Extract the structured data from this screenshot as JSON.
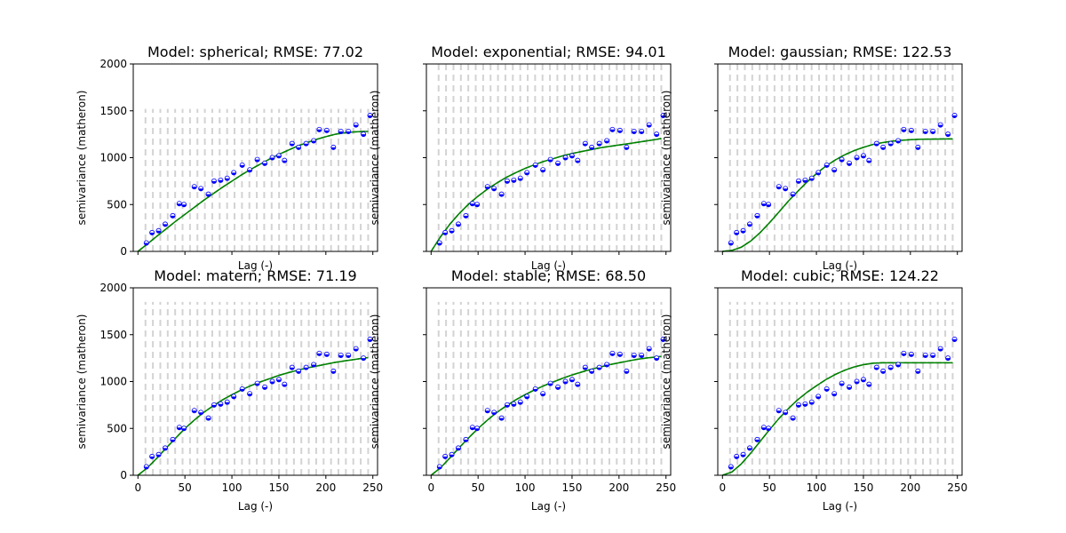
{
  "colors": {
    "points": "#0000ff",
    "model_line": "#008000",
    "bin_lines": "#d3d3d3",
    "axes": "#000000"
  },
  "chart_data": [
    {
      "type": "scatter",
      "title": "Model: spherical; RMSE: 77.02",
      "xlabel": "Lag (-)",
      "ylabel": "semivariance (matheron)",
      "xlim": [
        -5,
        255
      ],
      "ylim": [
        0,
        2000
      ],
      "xticks": [
        0,
        50,
        100,
        150,
        200,
        250
      ],
      "yticks": [
        0,
        500,
        1000,
        1500,
        2000
      ],
      "show_xticklabels": false,
      "show_yticklabels": true,
      "grid": false,
      "bins": {
        "x_start": 8,
        "x_step": 7.9,
        "count": 31,
        "height": 1520
      },
      "series": [
        {
          "kind": "empirical",
          "x": [
            9,
            15,
            22,
            29,
            37,
            44,
            49,
            60,
            67,
            75,
            81,
            88,
            95,
            102,
            111,
            119,
            127,
            135,
            143,
            150,
            156,
            164,
            171,
            179,
            187,
            193,
            201,
            208,
            216,
            224,
            232,
            240,
            247
          ],
          "y": [
            90,
            200,
            220,
            290,
            380,
            510,
            500,
            690,
            670,
            610,
            750,
            760,
            780,
            840,
            920,
            870,
            980,
            940,
            1000,
            1020,
            970,
            1150,
            1110,
            1150,
            1180,
            1300,
            1290,
            1110,
            1280,
            1280,
            1350,
            1250,
            1450
          ]
        },
        {
          "kind": "model",
          "x": [
            0,
            10,
            20,
            30,
            40,
            50,
            60,
            70,
            80,
            90,
            100,
            110,
            120,
            130,
            140,
            150,
            160,
            170,
            180,
            190,
            200,
            210,
            220,
            230,
            240,
            245
          ],
          "y": [
            0,
            80,
            160,
            240,
            320,
            395,
            470,
            545,
            615,
            685,
            750,
            815,
            875,
            930,
            985,
            1035,
            1080,
            1125,
            1160,
            1195,
            1225,
            1250,
            1265,
            1275,
            1280,
            1280
          ]
        }
      ]
    },
    {
      "type": "scatter",
      "title": "Model: exponential; RMSE: 94.01",
      "xlabel": "Lag (-)",
      "ylabel": "semivariance (matheron)",
      "xlim": [
        -5,
        255
      ],
      "ylim": [
        0,
        2000
      ],
      "xticks": [
        0,
        50,
        100,
        150,
        200,
        250
      ],
      "yticks": [
        0,
        500,
        1000,
        1500,
        2000
      ],
      "show_xticklabels": false,
      "show_yticklabels": false,
      "grid": false,
      "bins": {
        "x_start": 8,
        "x_step": 7.9,
        "count": 31,
        "height": 2000
      },
      "series": [
        {
          "kind": "empirical",
          "x": [
            9,
            15,
            22,
            29,
            37,
            44,
            49,
            60,
            67,
            75,
            81,
            88,
            95,
            102,
            111,
            119,
            127,
            135,
            143,
            150,
            156,
            164,
            171,
            179,
            187,
            193,
            201,
            208,
            216,
            224,
            232,
            240,
            247
          ],
          "y": [
            90,
            200,
            220,
            290,
            380,
            510,
            500,
            690,
            670,
            610,
            750,
            760,
            780,
            840,
            920,
            870,
            980,
            940,
            1000,
            1020,
            970,
            1150,
            1110,
            1150,
            1180,
            1300,
            1290,
            1110,
            1280,
            1280,
            1350,
            1250,
            1450
          ]
        },
        {
          "kind": "model",
          "x": [
            0,
            10,
            20,
            30,
            40,
            50,
            60,
            70,
            80,
            90,
            100,
            110,
            120,
            130,
            140,
            150,
            160,
            170,
            180,
            190,
            200,
            210,
            220,
            230,
            240,
            245
          ],
          "y": [
            0,
            155,
            290,
            405,
            505,
            590,
            665,
            730,
            790,
            840,
            885,
            925,
            960,
            990,
            1020,
            1045,
            1065,
            1085,
            1105,
            1120,
            1135,
            1150,
            1165,
            1180,
            1195,
            1205
          ]
        }
      ]
    },
    {
      "type": "scatter",
      "title": "Model: gaussian; RMSE: 122.53",
      "xlabel": "Lag (-)",
      "ylabel": "semivariance (matheron)",
      "xlim": [
        -5,
        255
      ],
      "ylim": [
        0,
        2000
      ],
      "xticks": [
        0,
        50,
        100,
        150,
        200,
        250
      ],
      "yticks": [
        0,
        500,
        1000,
        1500,
        2000
      ],
      "show_xticklabels": false,
      "show_yticklabels": false,
      "grid": false,
      "bins": {
        "x_start": 8,
        "x_step": 7.9,
        "count": 31,
        "height": 2000
      },
      "series": [
        {
          "kind": "empirical",
          "x": [
            9,
            15,
            22,
            29,
            37,
            44,
            49,
            60,
            67,
            75,
            81,
            88,
            95,
            102,
            111,
            119,
            127,
            135,
            143,
            150,
            156,
            164,
            171,
            179,
            187,
            193,
            201,
            208,
            216,
            224,
            232,
            240,
            247
          ],
          "y": [
            90,
            200,
            220,
            290,
            380,
            510,
            500,
            690,
            670,
            610,
            750,
            760,
            780,
            840,
            920,
            870,
            980,
            940,
            1000,
            1020,
            970,
            1150,
            1110,
            1150,
            1180,
            1300,
            1290,
            1110,
            1280,
            1280,
            1350,
            1250,
            1450
          ]
        },
        {
          "kind": "model",
          "x": [
            0,
            10,
            20,
            30,
            40,
            50,
            60,
            70,
            80,
            90,
            100,
            110,
            120,
            130,
            140,
            150,
            160,
            170,
            180,
            190,
            200,
            210,
            220,
            230,
            240,
            245
          ],
          "y": [
            0,
            10,
            45,
            110,
            200,
            305,
            420,
            535,
            640,
            740,
            830,
            910,
            975,
            1030,
            1075,
            1110,
            1140,
            1160,
            1175,
            1185,
            1192,
            1196,
            1198,
            1199,
            1200,
            1200
          ]
        }
      ]
    },
    {
      "type": "scatter",
      "title": "Model: matern; RMSE: 71.19",
      "xlabel": "Lag (-)",
      "ylabel": "semivariance (matheron)",
      "xlim": [
        -5,
        255
      ],
      "ylim": [
        0,
        2000
      ],
      "xticks": [
        0,
        50,
        100,
        150,
        200,
        250
      ],
      "yticks": [
        0,
        500,
        1000,
        1500,
        2000
      ],
      "show_xticklabels": true,
      "show_yticklabels": true,
      "grid": false,
      "bins": {
        "x_start": 8,
        "x_step": 7.9,
        "count": 31,
        "height": 1850
      },
      "series": [
        {
          "kind": "empirical",
          "x": [
            9,
            15,
            22,
            29,
            37,
            44,
            49,
            60,
            67,
            75,
            81,
            88,
            95,
            102,
            111,
            119,
            127,
            135,
            143,
            150,
            156,
            164,
            171,
            179,
            187,
            193,
            201,
            208,
            216,
            224,
            232,
            240,
            247
          ],
          "y": [
            90,
            200,
            220,
            290,
            380,
            510,
            500,
            690,
            670,
            610,
            750,
            760,
            780,
            840,
            920,
            870,
            980,
            940,
            1000,
            1020,
            970,
            1150,
            1110,
            1150,
            1180,
            1300,
            1290,
            1110,
            1280,
            1280,
            1350,
            1250,
            1450
          ]
        },
        {
          "kind": "model",
          "x": [
            0,
            10,
            20,
            30,
            40,
            50,
            60,
            70,
            80,
            90,
            100,
            110,
            120,
            130,
            140,
            150,
            160,
            170,
            180,
            190,
            200,
            210,
            220,
            230,
            240,
            245
          ],
          "y": [
            0,
            80,
            180,
            290,
            395,
            500,
            590,
            670,
            740,
            805,
            860,
            910,
            955,
            995,
            1030,
            1065,
            1095,
            1120,
            1145,
            1165,
            1185,
            1205,
            1220,
            1235,
            1250,
            1255
          ]
        }
      ]
    },
    {
      "type": "scatter",
      "title": "Model: stable; RMSE: 68.50",
      "xlabel": "Lag (-)",
      "ylabel": "semivariance (matheron)",
      "xlim": [
        -5,
        255
      ],
      "ylim": [
        0,
        2000
      ],
      "xticks": [
        0,
        50,
        100,
        150,
        200,
        250
      ],
      "yticks": [
        0,
        500,
        1000,
        1500,
        2000
      ],
      "show_xticklabels": true,
      "show_yticklabels": false,
      "grid": false,
      "bins": {
        "x_start": 8,
        "x_step": 7.9,
        "count": 31,
        "height": 1850
      },
      "series": [
        {
          "kind": "empirical",
          "x": [
            9,
            15,
            22,
            29,
            37,
            44,
            49,
            60,
            67,
            75,
            81,
            88,
            95,
            102,
            111,
            119,
            127,
            135,
            143,
            150,
            156,
            164,
            171,
            179,
            187,
            193,
            201,
            208,
            216,
            224,
            232,
            240,
            247
          ],
          "y": [
            90,
            200,
            220,
            290,
            380,
            510,
            500,
            690,
            670,
            610,
            750,
            760,
            780,
            840,
            920,
            870,
            980,
            940,
            1000,
            1020,
            970,
            1150,
            1110,
            1150,
            1180,
            1300,
            1290,
            1110,
            1280,
            1280,
            1350,
            1250,
            1450
          ]
        },
        {
          "kind": "model",
          "x": [
            0,
            10,
            20,
            30,
            40,
            50,
            60,
            70,
            80,
            90,
            100,
            110,
            120,
            130,
            140,
            150,
            160,
            170,
            180,
            190,
            200,
            210,
            220,
            230,
            240,
            245
          ],
          "y": [
            0,
            80,
            185,
            295,
            400,
            500,
            590,
            670,
            740,
            805,
            860,
            910,
            955,
            995,
            1035,
            1070,
            1100,
            1130,
            1155,
            1180,
            1200,
            1220,
            1238,
            1252,
            1262,
            1268
          ]
        }
      ]
    },
    {
      "type": "scatter",
      "title": "Model: cubic; RMSE: 124.22",
      "xlabel": "Lag (-)",
      "ylabel": "semivariance (matheron)",
      "xlim": [
        -5,
        255
      ],
      "ylim": [
        0,
        2000
      ],
      "xticks": [
        0,
        50,
        100,
        150,
        200,
        250
      ],
      "yticks": [
        0,
        500,
        1000,
        1500,
        2000
      ],
      "show_xticklabels": true,
      "show_yticklabels": false,
      "grid": false,
      "bins": {
        "x_start": 8,
        "x_step": 7.9,
        "count": 31,
        "height": 1850
      },
      "series": [
        {
          "kind": "empirical",
          "x": [
            9,
            15,
            22,
            29,
            37,
            44,
            49,
            60,
            67,
            75,
            81,
            88,
            95,
            102,
            111,
            119,
            127,
            135,
            143,
            150,
            156,
            164,
            171,
            179,
            187,
            193,
            201,
            208,
            216,
            224,
            232,
            240,
            247
          ],
          "y": [
            90,
            200,
            220,
            290,
            380,
            510,
            500,
            690,
            670,
            610,
            750,
            760,
            780,
            840,
            920,
            870,
            980,
            940,
            1000,
            1020,
            970,
            1150,
            1110,
            1150,
            1180,
            1300,
            1290,
            1110,
            1280,
            1280,
            1350,
            1250,
            1450
          ]
        },
        {
          "kind": "model",
          "x": [
            0,
            10,
            20,
            30,
            40,
            50,
            60,
            70,
            80,
            90,
            100,
            110,
            120,
            130,
            140,
            150,
            160,
            170,
            180,
            190,
            200,
            210,
            220,
            230,
            240,
            245
          ],
          "y": [
            0,
            35,
            120,
            235,
            360,
            485,
            605,
            710,
            805,
            885,
            955,
            1020,
            1075,
            1120,
            1155,
            1180,
            1195,
            1200,
            1200,
            1200,
            1200,
            1200,
            1200,
            1200,
            1200,
            1200
          ]
        }
      ]
    }
  ]
}
